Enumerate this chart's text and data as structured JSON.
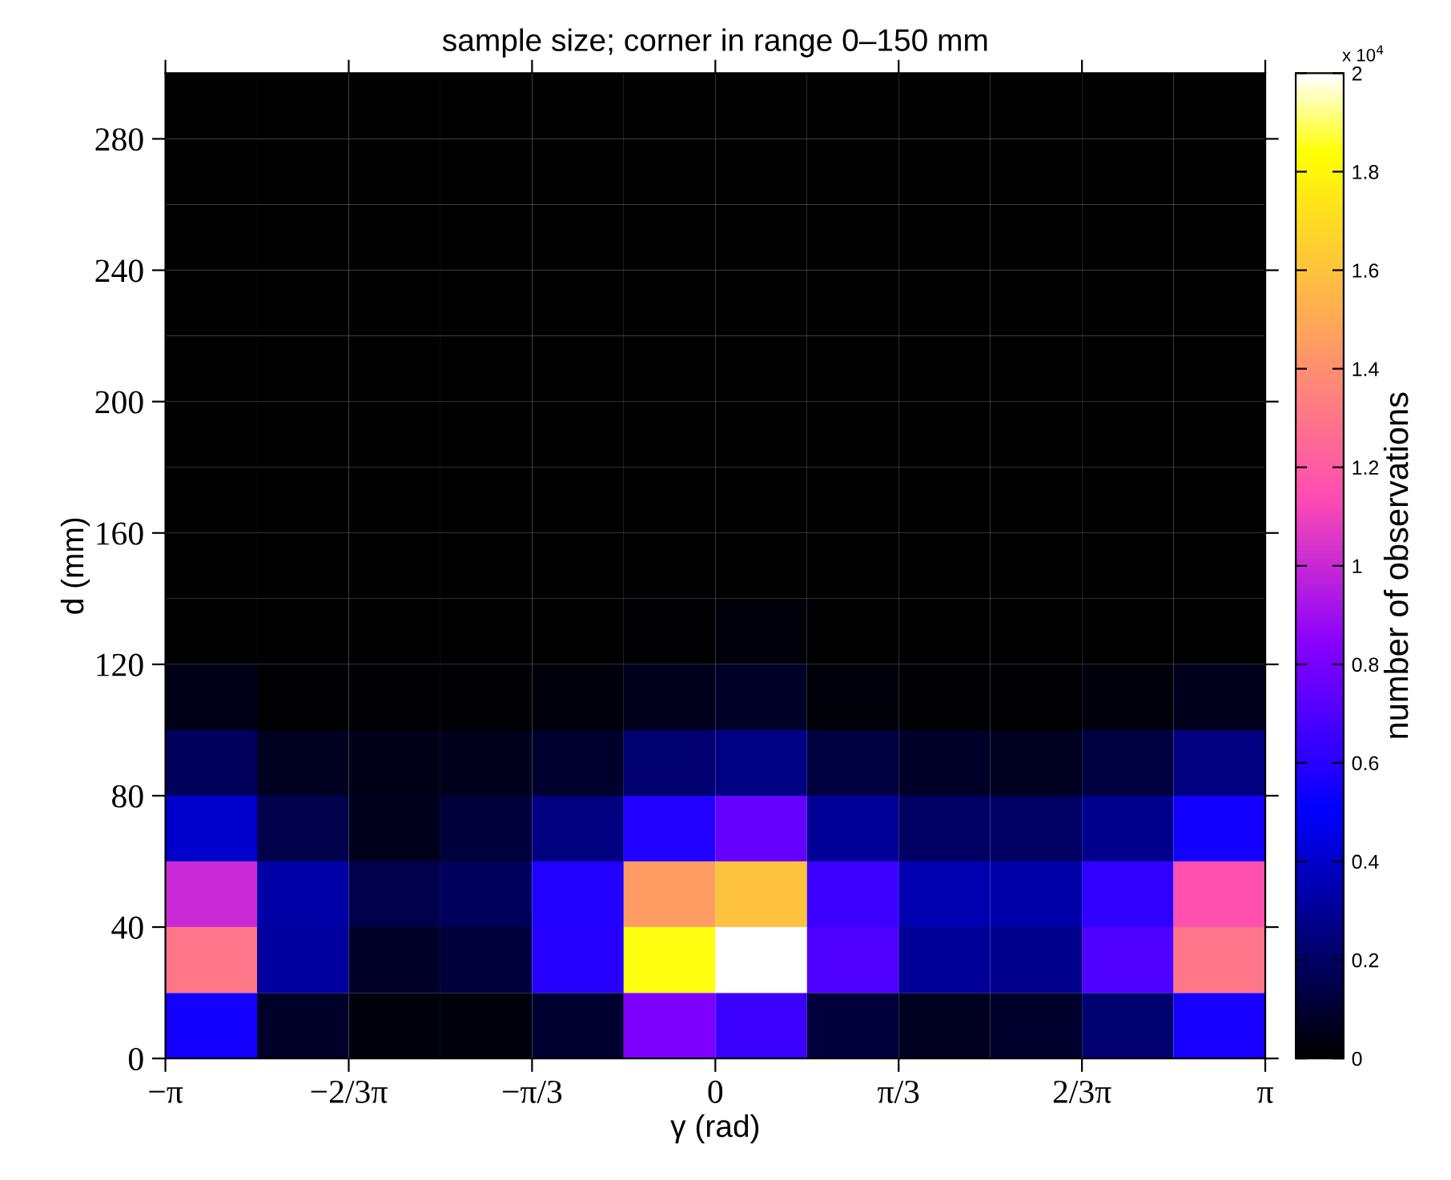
{
  "chart_data": {
    "type": "heatmap",
    "title": "sample size; corner in range 0–150 mm",
    "xlabel": "γ (rad)",
    "ylabel": "d (mm)",
    "clabel": "number of observations",
    "annotations": [
      "x 10$^{4}$"
    ],
    "xlim": [
      -3.14159,
      3.14159
    ],
    "xticks": [
      {
        "value": -3.14159,
        "label": "−π"
      },
      {
        "value": -2.0944,
        "label": "−2/3π"
      },
      {
        "value": -1.0472,
        "label": "−π/3"
      },
      0,
      {
        "value": 1.0472,
        "label": "π/3"
      },
      {
        "value": 2.0944,
        "label": "2/3π"
      },
      {
        "value": 3.14159,
        "label": "π"
      }
    ],
    "ylim": [
      0,
      300
    ],
    "yticks": [
      0,
      40,
      80,
      120,
      160,
      200,
      240,
      280
    ],
    "clim": [
      0,
      2
    ],
    "cticks": [
      0,
      0.2,
      0.4,
      0.6,
      0.8,
      1,
      1.2,
      1.4,
      1.6,
      1.8,
      2
    ],
    "cells": [
      [
        0,
        0,
        0,
        0,
        0,
        0,
        0,
        0,
        0,
        0,
        0,
        0
      ],
      [
        0,
        0,
        0,
        0,
        0,
        0,
        0,
        0,
        0,
        0,
        0,
        0
      ],
      [
        0,
        0,
        0,
        0,
        0,
        0,
        0,
        0,
        0,
        0,
        0,
        0
      ],
      [
        0,
        0,
        0,
        0,
        0,
        0,
        0,
        0,
        0,
        0,
        0,
        0
      ],
      [
        0,
        0,
        0,
        0,
        0,
        0,
        0,
        0,
        0,
        0,
        0,
        0
      ],
      [
        0,
        0,
        0,
        0,
        0,
        0,
        0,
        0,
        0,
        0,
        0,
        0
      ],
      [
        0,
        0,
        0,
        0,
        0,
        0,
        0,
        0,
        0,
        0,
        0,
        0
      ],
      [
        0,
        0,
        0,
        0,
        0,
        0,
        0,
        0,
        0,
        0,
        0,
        0
      ],
      [
        0,
        0,
        0,
        0,
        0,
        0.01,
        0.02,
        0,
        0,
        0,
        0,
        0
      ],
      [
        0.05,
        0.01,
        0.01,
        0.01,
        0.03,
        0.06,
        0.08,
        0.02,
        0.01,
        0.01,
        0.03,
        0.06
      ],
      [
        0.18,
        0.07,
        0.05,
        0.06,
        0.09,
        0.22,
        0.26,
        0.13,
        0.08,
        0.07,
        0.13,
        0.25
      ],
      [
        0.4,
        0.15,
        0.06,
        0.12,
        0.25,
        0.58,
        0.75,
        0.3,
        0.2,
        0.2,
        0.28,
        0.55
      ],
      [
        1,
        0.33,
        0.15,
        0.18,
        0.58,
        1.45,
        1.6,
        0.65,
        0.35,
        0.33,
        0.62,
        1.15
      ],
      [
        1.3,
        0.32,
        0.08,
        0.12,
        0.6,
        1.85,
        2,
        0.7,
        0.3,
        0.28,
        0.7,
        1.3
      ],
      [
        0.55,
        0.08,
        0.03,
        0.03,
        0.1,
        0.82,
        0.65,
        0.12,
        0.07,
        0.09,
        0.22,
        0.56
      ]
    ]
  }
}
